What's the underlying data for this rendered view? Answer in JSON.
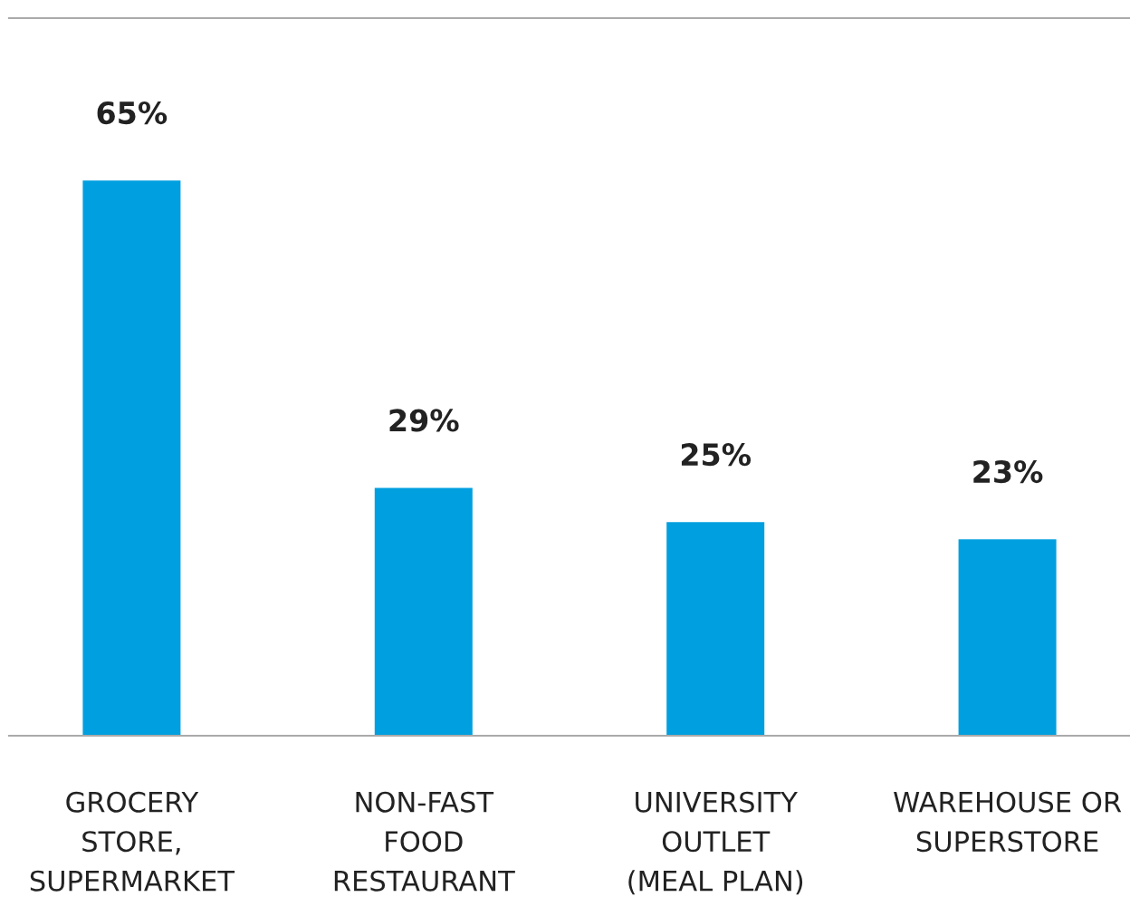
{
  "chart_data": {
    "type": "bar",
    "categories": [
      "GROCERY\nSTORE,\nSUPERMARKET",
      "NON-FAST\nFOOD\nRESTAURANT",
      "UNIVERSITY\nOUTLET\n(MEAL PLAN)",
      "WAREHOUSE OR\nSUPERSTORE"
    ],
    "values": [
      65,
      29,
      25,
      23
    ],
    "value_labels": [
      "65%",
      "29%",
      "25%",
      "23%"
    ],
    "color": "#009fdf",
    "ylim": [
      0,
      84
    ],
    "grid": false,
    "legend": false
  }
}
